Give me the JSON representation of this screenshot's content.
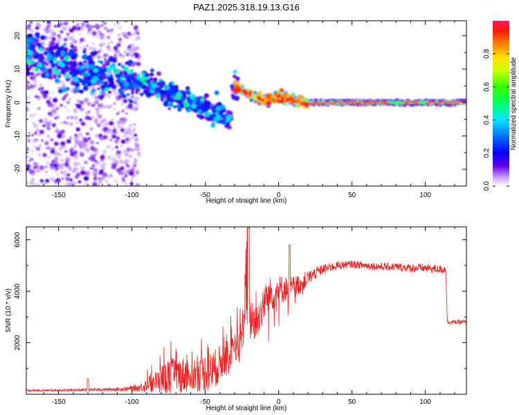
{
  "title": "PAZ1.2025.318.19.13.G16",
  "chart_data": [
    {
      "type": "heatmap",
      "title": "PAZ1.2025.318.19.13.G16",
      "xlabel": "Height of straight line (km)",
      "ylabel": "Frequency (Hz)",
      "xlim": [
        -172,
        128
      ],
      "ylim": [
        -25,
        24.5
      ],
      "xticks": [
        -150,
        -100,
        -50,
        0,
        50,
        100
      ],
      "yticks": [
        -20,
        -10,
        0,
        10,
        20
      ],
      "grid": false,
      "colorbar": {
        "label": "Normalized spectral amplitude",
        "range": [
          0.0,
          1.0
        ],
        "ticks": [
          0.0,
          0.2,
          0.4,
          0.6,
          0.8
        ],
        "colormap": [
          "#ffffff",
          "#b377ff",
          "#6a00e8",
          "#0000ff",
          "#00e5ff",
          "#00ff00",
          "#ffff00",
          "#ff8000",
          "#ff0000",
          "#ff1a66"
        ]
      },
      "ridge": {
        "description_points": [
          {
            "x": -168,
            "freq": 14
          },
          {
            "x": -150,
            "freq": 11
          },
          {
            "x": -130,
            "freq": 9
          },
          {
            "x": -110,
            "freq": 7.5
          },
          {
            "x": -95,
            "freq": 6
          },
          {
            "x": -80,
            "freq": 3.5
          },
          {
            "x": -65,
            "freq": 1
          },
          {
            "x": -50,
            "freq": -1.5
          },
          {
            "x": -40,
            "freq": -3
          },
          {
            "x": -33,
            "freq": -5
          },
          {
            "x": -30,
            "freq": 5
          },
          {
            "x": -20,
            "freq": 2.5
          },
          {
            "x": -10,
            "freq": 0.5
          },
          {
            "x": 0,
            "freq": 2
          },
          {
            "x": 10,
            "freq": 0.5
          },
          {
            "x": 20,
            "freq": 0
          },
          {
            "x": 128,
            "freq": 0
          }
        ]
      }
    },
    {
      "type": "line",
      "title": "",
      "xlabel": "Height of straight line (km)",
      "ylabel": "SNR (10 * v/v)",
      "xlim": [
        -172,
        128
      ],
      "ylim": [
        0,
        6500
      ],
      "xticks": [
        -150,
        -100,
        -50,
        0,
        50,
        100
      ],
      "yticks": [
        2000,
        4000,
        6000
      ],
      "grid": false,
      "color": "#ee2222",
      "series": [
        {
          "name": "SNR",
          "x": [
            -172,
            -150,
            -120,
            -105,
            -95,
            -85,
            -75,
            -65,
            -55,
            -45,
            -38,
            -30,
            -25,
            -22,
            -20,
            -18,
            -15,
            -10,
            -5,
            0,
            5,
            10,
            15,
            20,
            25,
            30,
            40,
            50,
            60,
            70,
            80,
            90,
            100,
            110,
            114,
            115,
            120,
            128
          ],
          "y": [
            150,
            150,
            180,
            200,
            250,
            450,
            700,
            750,
            800,
            900,
            1300,
            1600,
            2200,
            4500,
            2800,
            3000,
            2700,
            3600,
            3900,
            4050,
            4100,
            4150,
            4300,
            4500,
            4700,
            4850,
            5000,
            5050,
            5000,
            4950,
            4950,
            4900,
            4900,
            4850,
            4850,
            2800,
            2800,
            2800
          ],
          "noise": [
            40,
            40,
            60,
            80,
            150,
            400,
            700,
            700,
            700,
            800,
            700,
            700,
            800,
            1800,
            900,
            800,
            800,
            700,
            700,
            600,
            500,
            450,
            400,
            300,
            250,
            200,
            160,
            150,
            150,
            160,
            160,
            170,
            170,
            170,
            170,
            90,
            90,
            90
          ]
        }
      ]
    }
  ]
}
